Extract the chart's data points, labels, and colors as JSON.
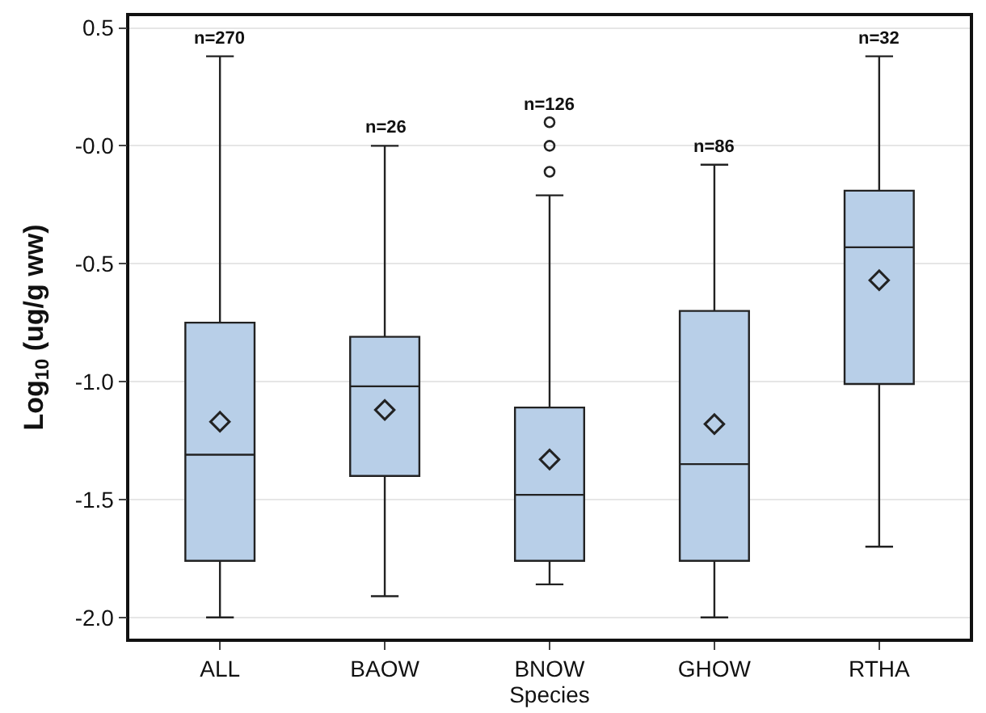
{
  "chart_data": {
    "type": "box",
    "xlabel": "Species",
    "ylabel": "Log$_{10}$ (ug/g ww)",
    "categories": [
      "ALL",
      "BAOW",
      "BNOW",
      "GHOW",
      "RTHA"
    ],
    "color": "#b8cfe8",
    "boxes": [
      {
        "low": -2.0,
        "q1": -1.76,
        "median": -1.31,
        "q3": -0.75,
        "high": 0.38,
        "mean": -1.17
      },
      {
        "low": -1.91,
        "q1": -1.4,
        "median": -1.02,
        "q3": -0.81,
        "high": 0.0,
        "mean": -1.12
      },
      {
        "low": -1.86,
        "q1": -1.76,
        "median": -1.48,
        "q3": -1.11,
        "high": -0.21,
        "mean": -1.33,
        "outliers": [
          0.1,
          0.0,
          -0.11
        ]
      },
      {
        "low": -2.0,
        "q1": -1.76,
        "median": -1.35,
        "q3": -0.7,
        "high": -0.08,
        "mean": -1.18
      },
      {
        "low": -1.7,
        "q1": -1.01,
        "median": -0.43,
        "q3": -0.19,
        "high": 0.38,
        "mean": -0.57
      }
    ],
    "annotations": [
      "n=270",
      "n=26",
      "n=126",
      "n=86",
      "n=32"
    ],
    "ylim": [
      -2.09,
      0.55
    ],
    "yticks": [
      0.5,
      {
        "value": 0,
        "label": "-0.0"
      },
      -0.5,
      {
        "value": -1,
        "label": "-1.0"
      },
      -1.5,
      {
        "value": -2,
        "label": "-2.0"
      }
    ],
    "grid": "y",
    "marker": "diamond"
  }
}
